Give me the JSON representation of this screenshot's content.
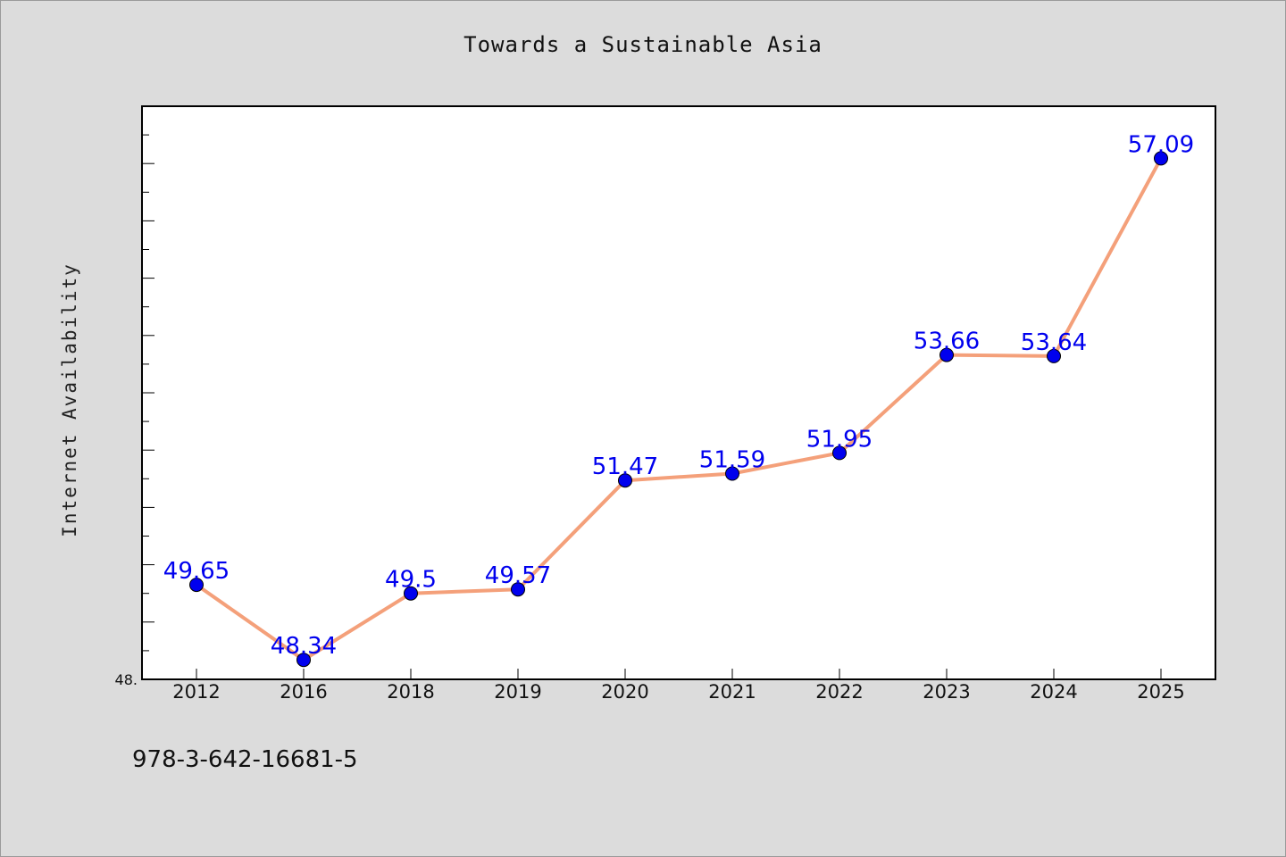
{
  "chart_data": {
    "type": "line",
    "title": "Towards a Sustainable Asia",
    "xlabel": "",
    "ylabel": "Internet Availability",
    "categories": [
      "2012",
      "2016",
      "2018",
      "2019",
      "2020",
      "2021",
      "2022",
      "2023",
      "2024",
      "2025"
    ],
    "series": [
      {
        "values": [
          49.65,
          48.34,
          49.5,
          49.57,
          51.47,
          51.59,
          51.95,
          53.66,
          53.64,
          57.09
        ],
        "data_labels": [
          "49.65",
          "48.34",
          "49.5",
          "49.57",
          "51.47",
          "51.59",
          "51.95",
          "53.66",
          "53.64",
          "57.09"
        ]
      }
    ],
    "ylim": [
      48.0,
      58.0
    ],
    "y_tick_label": "48.",
    "grid": false,
    "colors": {
      "line": "#f4a07a",
      "marker": "#0000ee",
      "label": "#0000ee"
    }
  },
  "footnote": "978-3-642-16681-5"
}
